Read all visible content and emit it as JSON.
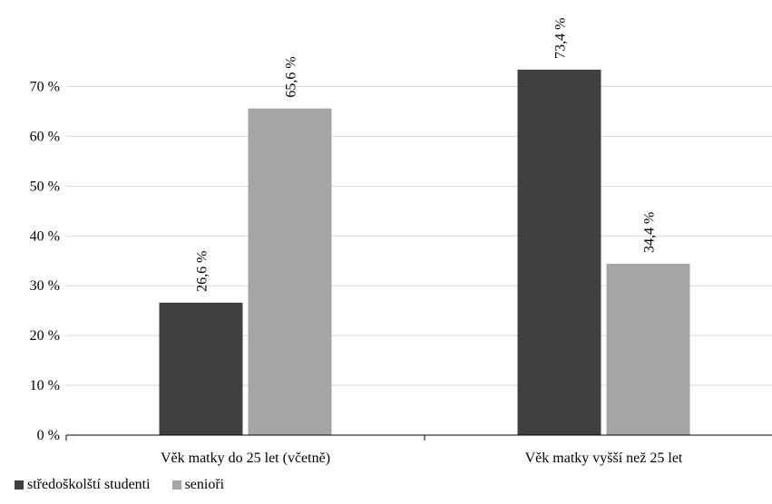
{
  "chart_data": {
    "type": "bar",
    "categories": [
      "Věk matky do 25 let (včetně)",
      "Věk matky vyšší než 25 let"
    ],
    "series": [
      {
        "name": "středoškolští studenti",
        "values": [
          26.6,
          73.4
        ],
        "labels": [
          "26,6 %",
          "73,4 %"
        ],
        "color": "#404040"
      },
      {
        "name": "senioři",
        "values": [
          65.6,
          34.4
        ],
        "labels": [
          "65,6 %",
          "34,4 %"
        ],
        "color": "#a5a5a5"
      }
    ],
    "ylim": [
      0,
      70
    ],
    "yticks": [
      {
        "value": 0,
        "label": "0 %"
      },
      {
        "value": 10,
        "label": "10 %"
      },
      {
        "value": 20,
        "label": "20 %"
      },
      {
        "value": 30,
        "label": "30 %"
      },
      {
        "value": 40,
        "label": "40 %"
      },
      {
        "value": 50,
        "label": "50 %"
      },
      {
        "value": 60,
        "label": "60 %"
      },
      {
        "value": 70,
        "label": "70 %"
      }
    ],
    "grid": true,
    "gridColor": "#d9d9d9",
    "legend_position": "bottom-left",
    "title": "",
    "xlabel": "",
    "ylabel": ""
  }
}
